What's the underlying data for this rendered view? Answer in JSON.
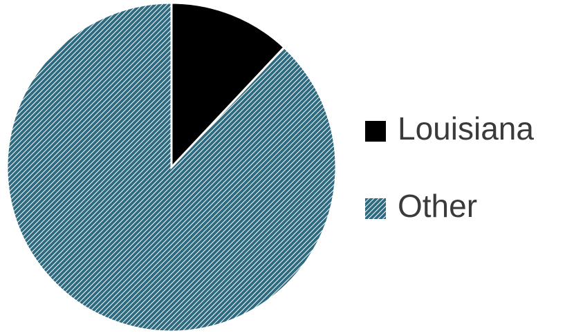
{
  "chart_data": {
    "type": "pie",
    "categories": [
      "Louisiana",
      "Other"
    ],
    "values": [
      12,
      88
    ],
    "colors": [
      "#000000",
      "#2e6b80"
    ],
    "hatch": [
      false,
      true
    ],
    "legend": "right"
  }
}
